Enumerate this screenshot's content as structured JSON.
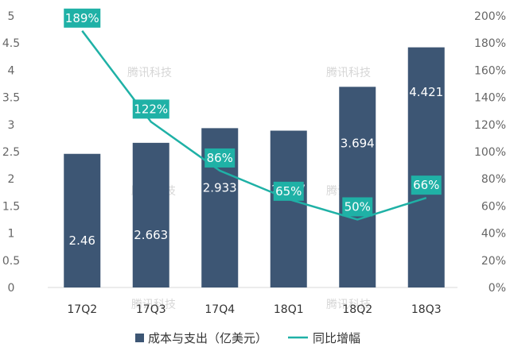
{
  "chart_data": {
    "type": "bar",
    "categories": [
      "17Q2",
      "17Q3",
      "17Q4",
      "18Q1",
      "18Q2",
      "18Q3"
    ],
    "series": [
      {
        "name": "成本与支出（亿美元）",
        "type": "bar",
        "axis": "left",
        "color": "#3d5674",
        "values": [
          2.46,
          2.663,
          2.933,
          2.887,
          3.694,
          4.421
        ],
        "labels": [
          "2.46",
          "2.663",
          "2.933",
          "2.887",
          "3.694",
          "4.421"
        ]
      },
      {
        "name": "同比增幅",
        "type": "line",
        "axis": "right",
        "color": "#1fb1a6",
        "values": [
          189,
          122,
          86,
          65,
          50,
          66
        ],
        "labels": [
          "189%",
          "122%",
          "86%",
          "65%",
          "50%",
          "66%"
        ]
      }
    ],
    "y_left": {
      "ylim": [
        0,
        5
      ],
      "ticks": [
        "0",
        "0.5",
        "1",
        "1.5",
        "2",
        "2.5",
        "3",
        "3.5",
        "4",
        "4.5",
        "5"
      ]
    },
    "y_right": {
      "ylim": [
        0,
        200
      ],
      "ticks": [
        "0%",
        "20%",
        "40%",
        "60%",
        "80%",
        "100%",
        "120%",
        "140%",
        "160%",
        "180%",
        "200%"
      ]
    },
    "grid": false,
    "legend": "bottom",
    "watermark": "腾讯科技"
  }
}
